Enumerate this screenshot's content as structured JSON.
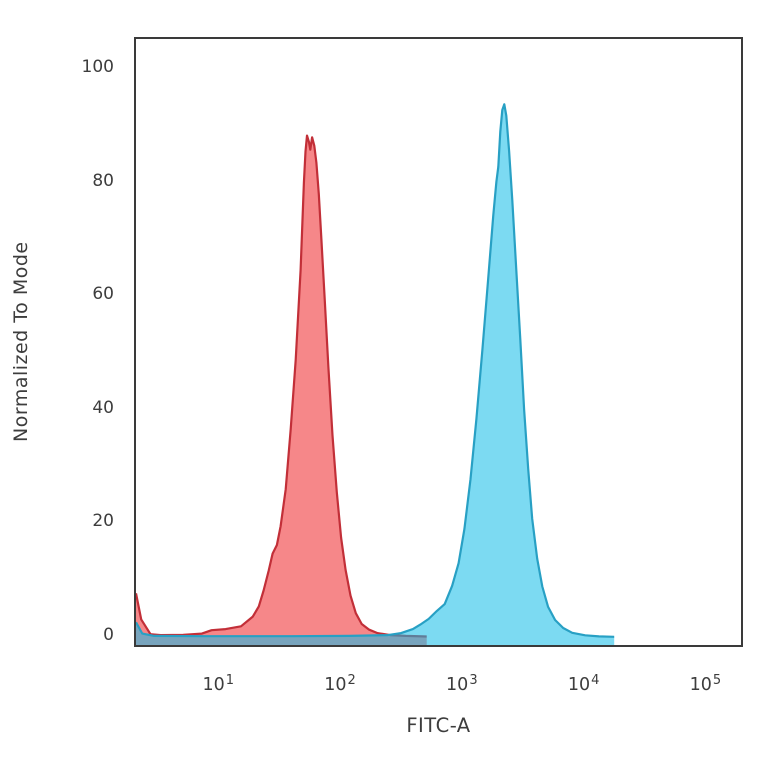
{
  "figure": {
    "background": "#ffffff",
    "axis_box_color": "#3a3a3a",
    "text_color": "#3d3d3d"
  },
  "chart_data": {
    "type": "area",
    "subtype": "flow-cytometry-histogram",
    "title": "",
    "xlabel": "FITC-A",
    "ylabel": "Normalized To Mode",
    "x_scale": "log10",
    "grid": false,
    "legend": null,
    "xlim": [
      2.13,
      198000
    ],
    "ylim": [
      -1.4,
      105.3
    ],
    "x_ticks": [
      {
        "value": 10,
        "base": "10",
        "exp": "1"
      },
      {
        "value": 100,
        "base": "10",
        "exp": "2"
      },
      {
        "value": 1000,
        "base": "10",
        "exp": "3"
      },
      {
        "value": 10000,
        "base": "10",
        "exp": "4"
      },
      {
        "value": 100000,
        "base": "10",
        "exp": "5"
      }
    ],
    "y_ticks": [
      {
        "value": 100,
        "label": "100"
      },
      {
        "value": 80,
        "label": "80"
      },
      {
        "value": 60,
        "label": "60"
      },
      {
        "value": 40,
        "label": "40"
      },
      {
        "value": 20,
        "label": "20"
      },
      {
        "value": 0,
        "label": "0"
      }
    ],
    "series": [
      {
        "name": "red-histogram",
        "peak": {
          "x": 57,
          "y": 88
        },
        "fill": "rgba(238,36,40,0.55)",
        "stroke": "#c22f38",
        "stroke_width": 2.2,
        "points": [
          [
            2.13,
            7.7
          ],
          [
            2.35,
            3.1
          ],
          [
            2.8,
            0.5
          ],
          [
            3.4,
            0.35
          ],
          [
            5.2,
            0.4
          ],
          [
            7.4,
            0.6
          ],
          [
            8.9,
            1.2
          ],
          [
            11.6,
            1.4
          ],
          [
            15.5,
            1.9
          ],
          [
            19.4,
            3.6
          ],
          [
            21.7,
            5.4
          ],
          [
            23.8,
            8.2
          ],
          [
            26.2,
            11.7
          ],
          [
            28.2,
            14.7
          ],
          [
            30.6,
            16.2
          ],
          [
            32.8,
            19.5
          ],
          [
            36.1,
            26.0
          ],
          [
            39.7,
            36.6
          ],
          [
            43.6,
            48.8
          ],
          [
            47.9,
            64.6
          ],
          [
            49.5,
            73.0
          ],
          [
            51.0,
            80.0
          ],
          [
            52.5,
            85.5
          ],
          [
            54.0,
            88.3
          ],
          [
            56.0,
            87.2
          ],
          [
            57.5,
            85.8
          ],
          [
            59.5,
            88.0
          ],
          [
            62.0,
            86.5
          ],
          [
            64.5,
            83.5
          ],
          [
            67.5,
            78.0
          ],
          [
            71.0,
            70.0
          ],
          [
            75.5,
            59.5
          ],
          [
            81.0,
            47.5
          ],
          [
            87.5,
            35.5
          ],
          [
            95.0,
            25.5
          ],
          [
            103,
            17.5
          ],
          [
            112,
            11.8
          ],
          [
            123,
            7.3
          ],
          [
            136,
            4.2
          ],
          [
            152,
            2.3
          ],
          [
            175,
            1.3
          ],
          [
            205,
            0.7
          ],
          [
            260,
            0.35
          ],
          [
            350,
            0.2
          ],
          [
            520,
            0.1
          ]
        ]
      },
      {
        "name": "cyan-histogram",
        "peak": {
          "x": 2255,
          "y": 94
        },
        "fill": "rgba(16,188,232,0.55)",
        "stroke": "#28a0c4",
        "stroke_width": 2.2,
        "points": [
          [
            2.13,
            2.6
          ],
          [
            2.4,
            0.6
          ],
          [
            3.0,
            0.2
          ],
          [
            8,
            0.15
          ],
          [
            40,
            0.15
          ],
          [
            120,
            0.2
          ],
          [
            250,
            0.35
          ],
          [
            320,
            0.7
          ],
          [
            400,
            1.4
          ],
          [
            460,
            2.2
          ],
          [
            540,
            3.2
          ],
          [
            630,
            4.6
          ],
          [
            730,
            5.8
          ],
          [
            840,
            9.0
          ],
          [
            950,
            13.0
          ],
          [
            1060,
            19.0
          ],
          [
            1190,
            27.8
          ],
          [
            1330,
            38.4
          ],
          [
            1490,
            50.6
          ],
          [
            1660,
            62.9
          ],
          [
            1830,
            74.3
          ],
          [
            1940,
            80.2
          ],
          [
            2010,
            82.8
          ],
          [
            2090,
            89.0
          ],
          [
            2170,
            92.8
          ],
          [
            2255,
            93.8
          ],
          [
            2340,
            91.8
          ],
          [
            2470,
            85.6
          ],
          [
            2620,
            76.9
          ],
          [
            2830,
            64.6
          ],
          [
            3050,
            52.4
          ],
          [
            3280,
            40.1
          ],
          [
            3540,
            29.6
          ],
          [
            3820,
            20.8
          ],
          [
            4200,
            13.8
          ],
          [
            4620,
            8.9
          ],
          [
            5160,
            5.3
          ],
          [
            5890,
            3.0
          ],
          [
            6860,
            1.6
          ],
          [
            8130,
            0.75
          ],
          [
            10400,
            0.3
          ],
          [
            13500,
            0.12
          ],
          [
            18000,
            0.05
          ]
        ]
      }
    ]
  }
}
